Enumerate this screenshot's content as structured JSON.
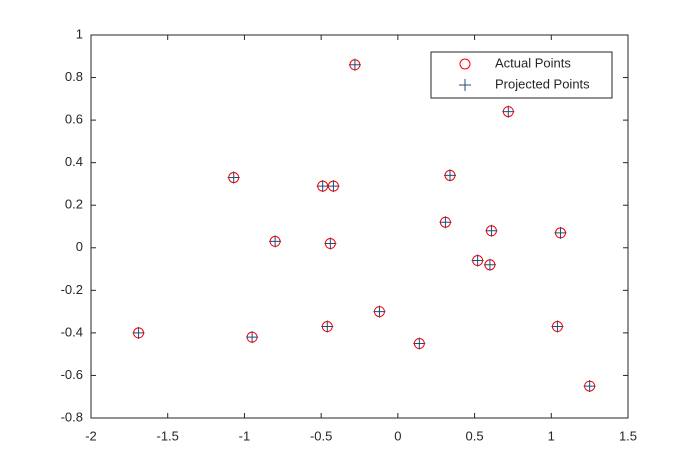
{
  "chart_data": {
    "type": "scatter",
    "xlim": [
      -2,
      1.5
    ],
    "ylim": [
      -0.8,
      1
    ],
    "xticks": [
      -2,
      -1.5,
      -1,
      -0.5,
      0,
      0.5,
      1,
      1.5
    ],
    "yticks": [
      -0.8,
      -0.6,
      -0.4,
      -0.2,
      0,
      0.2,
      0.4,
      0.6,
      0.8,
      1
    ],
    "grid": false,
    "legend": "northeast",
    "series": [
      {
        "name": "Actual Points",
        "color": "#ff0000",
        "marker": "circle",
        "x": [
          -1.69,
          -1.07,
          -0.95,
          -0.8,
          -0.49,
          -0.42,
          -0.44,
          -0.46,
          -0.28,
          -0.12,
          0.14,
          0.31,
          0.34,
          0.52,
          0.6,
          0.61,
          0.72,
          1.06,
          1.04,
          1.25
        ],
        "y": [
          -0.4,
          0.33,
          -0.42,
          0.03,
          0.29,
          0.29,
          0.02,
          -0.37,
          0.86,
          -0.3,
          -0.45,
          0.12,
          0.34,
          -0.06,
          -0.08,
          0.08,
          0.64,
          0.07,
          -0.37,
          -0.65
        ]
      },
      {
        "name": "Projected Points",
        "color": "#1f4e79",
        "marker": "plus",
        "x": [
          -1.69,
          -1.07,
          -0.95,
          -0.8,
          -0.49,
          -0.42,
          -0.44,
          -0.46,
          -0.28,
          -0.12,
          0.14,
          0.31,
          0.34,
          0.52,
          0.6,
          0.61,
          0.72,
          1.06,
          1.04,
          1.25
        ],
        "y": [
          -0.4,
          0.33,
          -0.42,
          0.03,
          0.29,
          0.29,
          0.02,
          -0.37,
          0.86,
          -0.3,
          -0.45,
          0.12,
          0.34,
          -0.06,
          -0.08,
          0.08,
          0.64,
          0.07,
          -0.37,
          -0.65
        ]
      }
    ]
  }
}
